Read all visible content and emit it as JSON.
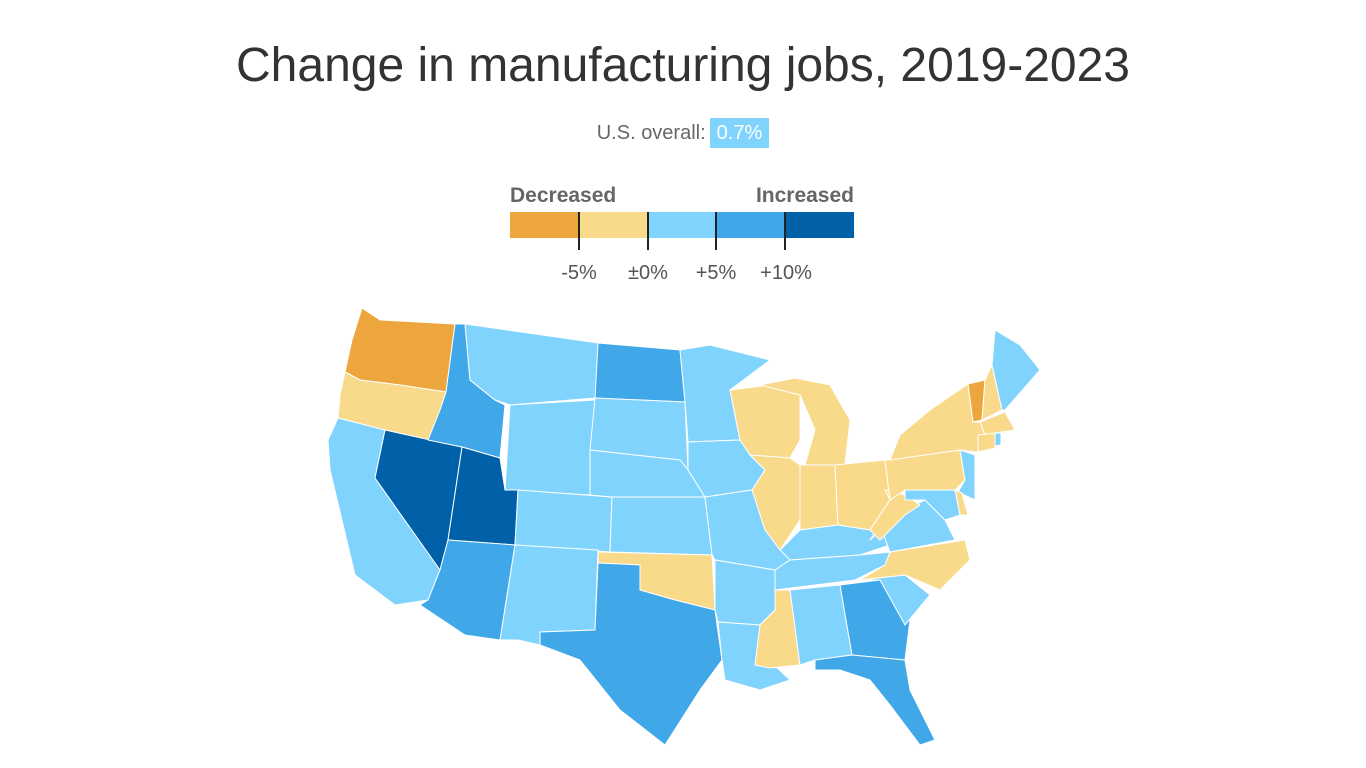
{
  "title": "Change in manufacturing jobs, 2019-2023",
  "overall": {
    "label": "U.S. overall:",
    "value": "0.7%"
  },
  "legend": {
    "left": "Decreased",
    "right": "Increased",
    "ticks": [
      "-5%",
      "±0%",
      "+5%",
      "+10%"
    ],
    "colors": [
      "#eda63e",
      "#f9da8b",
      "#80d3fd",
      "#40a7e8",
      "#0060a8"
    ],
    "bins": [
      "below -5%",
      "-5% to 0%",
      "0% to +5%",
      "+5% to +10%",
      "above +10%"
    ]
  },
  "states": {
    "WA": 0,
    "OR": 1,
    "CA": 2,
    "NV": 4,
    "ID": 3,
    "MT": 2,
    "WY": 2,
    "UT": 4,
    "AZ": 3,
    "CO": 2,
    "NM": 2,
    "ND": 3,
    "SD": 2,
    "NE": 2,
    "KS": 2,
    "OK": 1,
    "TX": 3,
    "MN": 2,
    "IA": 2,
    "MO": 2,
    "AR": 2,
    "LA": 2,
    "WI": 1,
    "MI": 1,
    "IL": 1,
    "IN": 1,
    "OH": 1,
    "KY": 2,
    "TN": 2,
    "MS": 1,
    "AL": 2,
    "GA": 3,
    "FL": 3,
    "SC": 2,
    "NC": 1,
    "VA": 2,
    "WV": 1,
    "PA": 1,
    "NY": 1,
    "VT": 0,
    "NH": 1,
    "ME": 2,
    "MA": 1,
    "CT": 1,
    "RI": 2,
    "NJ": 2,
    "DE": 1,
    "MD": 2
  }
}
